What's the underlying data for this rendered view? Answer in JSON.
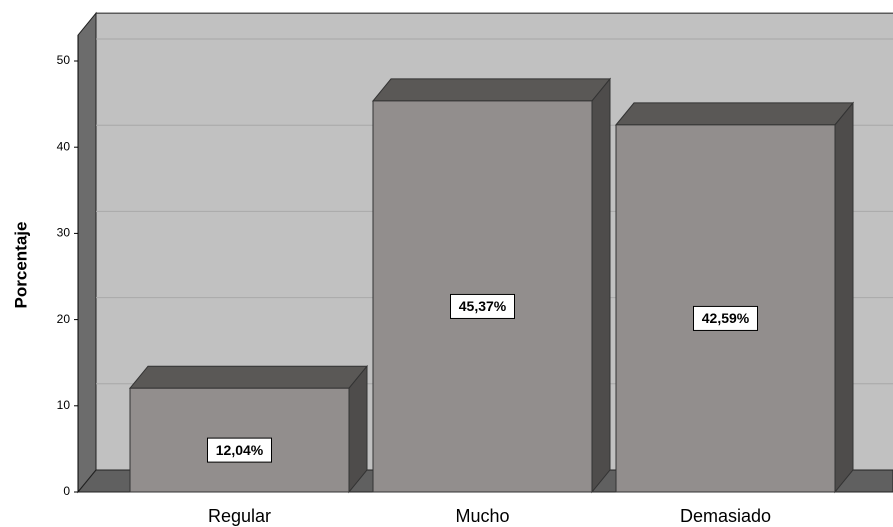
{
  "chart_data": {
    "type": "bar3d",
    "y_label": "Porcentaje",
    "categories": [
      "Regular",
      "Mucho",
      "Demasiado"
    ],
    "values": [
      12.04,
      45.37,
      42.59
    ],
    "value_labels": [
      "12,04%",
      "45,37%",
      "42,59%"
    ],
    "color": "#928e8d",
    "ylim": [
      0,
      53
    ],
    "yticks": [
      0,
      10,
      20,
      30,
      40,
      50
    ],
    "grid": true
  }
}
